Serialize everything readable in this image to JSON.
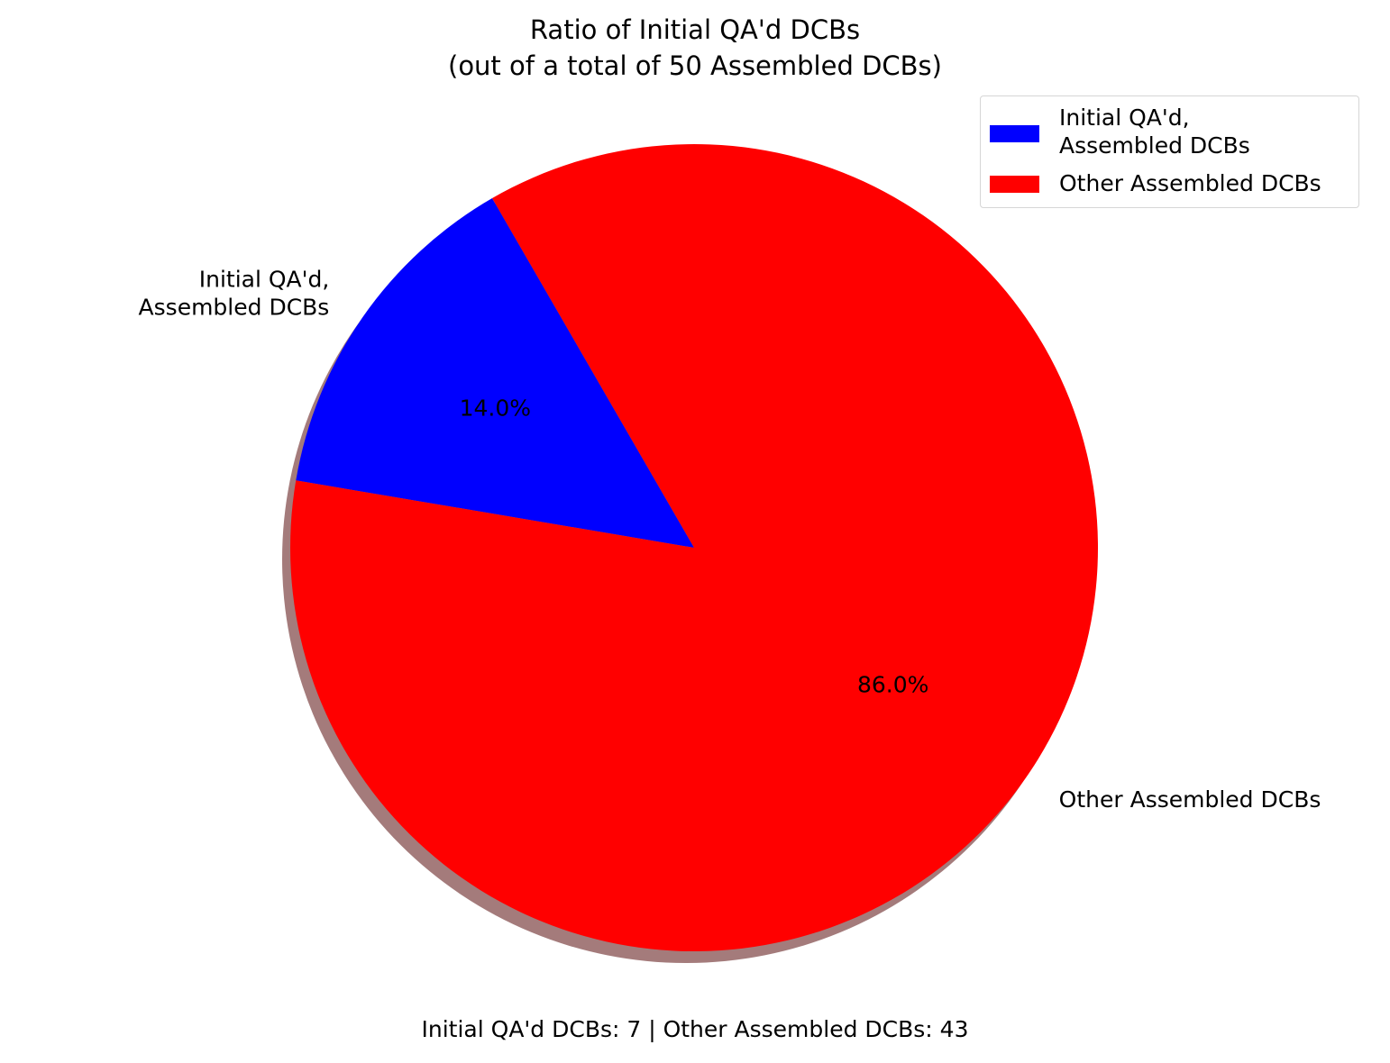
{
  "chart_data": {
    "type": "pie",
    "title": "Ratio of Initial QA'd DCBs",
    "subtitle": "(out of a total of 50 Assembled DCBs)",
    "slices": [
      {
        "label": "Initial QA'd,\nAssembled DCBs",
        "value": 7,
        "percent_label": "14.0%",
        "color": "#0000ff"
      },
      {
        "label": "Other Assembled DCBs",
        "value": 43,
        "percent_label": "86.0%",
        "color": "#ff0000"
      }
    ],
    "legend": {
      "placement": "top-right",
      "entries": [
        {
          "label": "Initial QA'd,\nAssembled DCBs",
          "color": "#0000ff"
        },
        {
          "label": "Other Assembled DCBs",
          "color": "#ff0000"
        }
      ]
    },
    "shadow": true,
    "footer": "Initial QA'd DCBs: 7 | Other Assembled DCBs: 43"
  }
}
